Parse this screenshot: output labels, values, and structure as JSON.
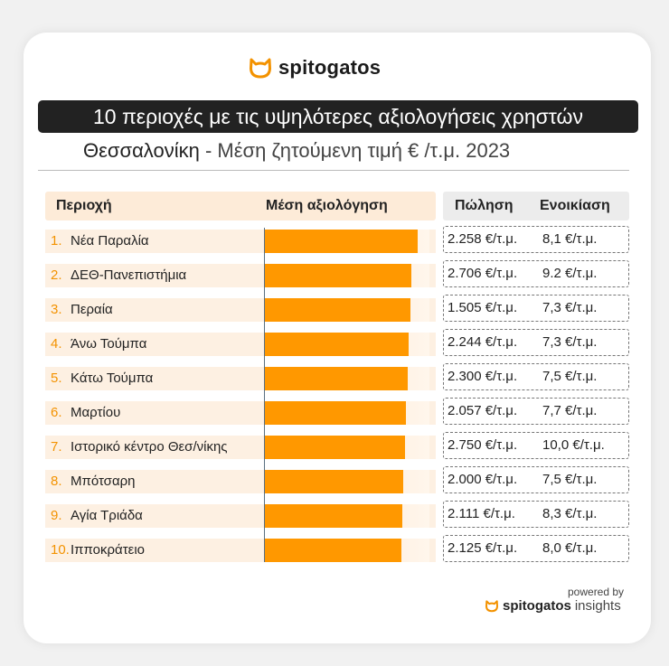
{
  "brand": {
    "name": "spitogatos",
    "icon": "cat-head-icon",
    "accent": "#f39200"
  },
  "headline": "10 περιοχές με τις υψηλότερες αξιολογήσεις χρηστών",
  "subtitle": {
    "city": "Θεσσαλονίκη",
    "rest": " - Μέση ζητούμενη τιμή € /τ.μ. 2023"
  },
  "table": {
    "col_area": "Περιοχή",
    "col_rating": "Μέση αξιολόγηση",
    "col_sale": "Πώληση",
    "col_rent": "Ενοικίαση"
  },
  "chart_data": {
    "type": "bar",
    "orientation": "horizontal",
    "categories": [
      "Νέα Παραλία",
      "ΔΕΘ-Πανεπιστήμια",
      "Περαία",
      "Άνω Τούμπα",
      "Κάτω Τούμπα",
      "Μαρτίου",
      "Ιστορικό κέντρο Θεσ/νίκης",
      "Μπότσαρη",
      "Αγία Τριάδα",
      "Ιπποκράτειο"
    ],
    "values": [
      0.93,
      0.89,
      0.885,
      0.875,
      0.87,
      0.855,
      0.85,
      0.84,
      0.835,
      0.83
    ],
    "grid": false,
    "legend": "none"
  },
  "rows": [
    {
      "rank": "1.",
      "area": "Νέα Παραλία",
      "sale": "2.258 €/τ.μ.",
      "rent": "8,1 €/τ.μ."
    },
    {
      "rank": "2.",
      "area": "ΔΕΘ-Πανεπιστήμια",
      "sale": "2.706 €/τ.μ.",
      "rent": "9.2 €/τ.μ."
    },
    {
      "rank": "3.",
      "area": "Περαία",
      "sale": "1.505 €/τ.μ.",
      "rent": "7,3 €/τ.μ."
    },
    {
      "rank": "4.",
      "area": "Άνω Τούμπα",
      "sale": "2.244 €/τ.μ.",
      "rent": "7,3 €/τ.μ."
    },
    {
      "rank": "5.",
      "area": "Κάτω Τούμπα",
      "sale": "2.300 €/τ.μ.",
      "rent": "7,5 €/τ.μ."
    },
    {
      "rank": "6.",
      "area": "Μαρτίου",
      "sale": "2.057 €/τ.μ.",
      "rent": "7,7 €/τ.μ."
    },
    {
      "rank": "7.",
      "area": "Ιστορικό κέντρο Θεσ/νίκης",
      "sale": "2.750 €/τ.μ.",
      "rent": "10,0 €/τ.μ."
    },
    {
      "rank": "8.",
      "area": "Μπότσαρη",
      "sale": "2.000 €/τ.μ.",
      "rent": "7,5 €/τ.μ."
    },
    {
      "rank": "9.",
      "area": "Αγία Τριάδα",
      "sale": "2.111 €/τ.μ.",
      "rent": "8,3 €/τ.μ."
    },
    {
      "rank": "10.",
      "area": "Ιπποκράτειο",
      "sale": "2.125 €/τ.μ.",
      "rent": "8,0 €/τ.μ."
    }
  ],
  "footer": {
    "powered_by": "powered by",
    "brand": "spitogatos",
    "suffix": "insights"
  }
}
